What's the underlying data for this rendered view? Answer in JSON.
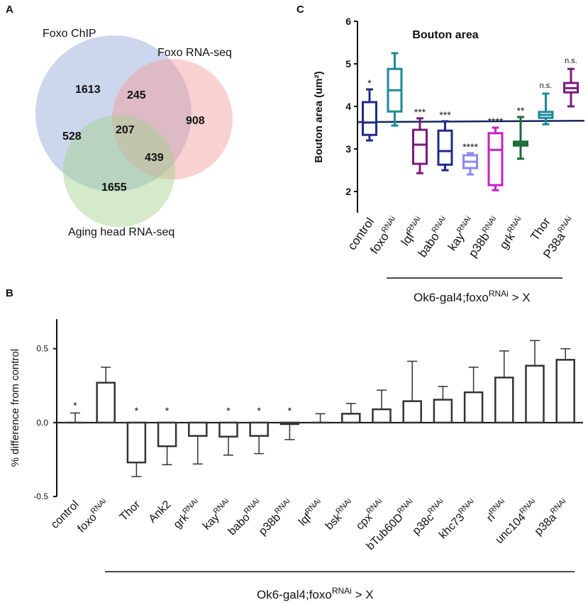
{
  "figure": {
    "panel_a": "A",
    "panel_b": "B",
    "panel_c": "C"
  },
  "venn": {
    "sets": [
      {
        "name": "Foxo ChIP",
        "color": "#8fa3d4"
      },
      {
        "name": "Foxo RNA-seq",
        "color": "#f59a9a"
      },
      {
        "name": "Aging head RNA-seq",
        "color": "#9fd08a"
      }
    ],
    "regions": {
      "chip_only": "1613",
      "chip_rnaseq": "245",
      "rnaseq_only": "908",
      "chip_aging": "528",
      "all_three": "207",
      "rnaseq_aging": "439",
      "aging_only": "1655"
    }
  },
  "chart_data": [
    {
      "id": "C",
      "type": "box",
      "title": "Bouton area",
      "ylabel": "Bouton area (um²)",
      "ylim": [
        1.5,
        6
      ],
      "yticks": [
        "2",
        "3",
        "4",
        "5",
        "6"
      ],
      "reference_line": 3.63,
      "group_label": "Ok6-gal4;foxo",
      "group_label_sup": "RNAi",
      "group_label_tail": " > X",
      "categories": [
        {
          "base": "control",
          "sup": "",
          "min": 3.2,
          "q1": 3.33,
          "median": 3.62,
          "q3": 4.1,
          "max": 4.4,
          "sig": "*",
          "color": "#1f2a8a"
        },
        {
          "base": "foxo",
          "sup": "RNAi",
          "min": 3.55,
          "q1": 3.88,
          "median": 4.38,
          "q3": 4.88,
          "max": 5.25,
          "sig": "",
          "color": "#1a8a9a"
        },
        {
          "base": "lqf",
          "sup": "RNAi",
          "min": 2.43,
          "q1": 2.65,
          "median": 3.1,
          "q3": 3.45,
          "max": 3.72,
          "sig": "***",
          "color": "#7a1a7a"
        },
        {
          "base": "babo",
          "sup": "RNAi",
          "min": 2.5,
          "q1": 2.63,
          "median": 2.95,
          "q3": 3.43,
          "max": 3.65,
          "sig": "***",
          "color": "#1f2a8a"
        },
        {
          "base": "kay",
          "sup": "RNAi",
          "min": 2.4,
          "q1": 2.55,
          "median": 2.7,
          "q3": 2.85,
          "max": 2.9,
          "sig": "****",
          "color": "#8a8aee"
        },
        {
          "base": "p38b",
          "sup": "RNAi",
          "min": 2.03,
          "q1": 2.15,
          "median": 2.98,
          "q3": 3.37,
          "max": 3.5,
          "sig": "****",
          "color": "#c820c8"
        },
        {
          "base": "grk",
          "sup": "RNAi",
          "min": 2.77,
          "q1": 3.08,
          "median": 3.12,
          "q3": 3.17,
          "max": 3.75,
          "sig": "**",
          "color": "#1a6a3a"
        },
        {
          "base": "Thor",
          "sup": "",
          "min": 3.58,
          "q1": 3.73,
          "median": 3.8,
          "q3": 3.87,
          "max": 4.3,
          "sig": "n.s.",
          "color": "#1a8a9a"
        },
        {
          "base": "P38a",
          "sup": "RNAi",
          "min": 4.0,
          "q1": 4.33,
          "median": 4.43,
          "q3": 4.55,
          "max": 4.88,
          "sig": "n.s.",
          "color": "#7a1a7a"
        }
      ]
    },
    {
      "id": "B",
      "type": "bar",
      "ylabel": "% difference from control",
      "ylim": [
        -0.5,
        0.7
      ],
      "yticks": [
        "0.5",
        "0.0",
        "-0.5"
      ],
      "group_label": "Ok6-gal4;foxo",
      "group_label_sup": "RNAi",
      "group_label_tail": " > X",
      "categories": [
        {
          "base": "control",
          "sup": "",
          "value": 0.0,
          "err": 0.065,
          "sig": "*"
        },
        {
          "base": "foxo",
          "sup": "RNAi",
          "value": 0.27,
          "err": 0.105,
          "sig": ""
        },
        {
          "base": "Thor",
          "sup": "",
          "value": -0.27,
          "err": 0.095,
          "sig": "*"
        },
        {
          "base": "Ank2",
          "sup": "",
          "value": -0.16,
          "err": 0.125,
          "sig": "*"
        },
        {
          "base": "grk",
          "sup": "RNAi",
          "value": -0.09,
          "err": 0.19,
          "sig": ""
        },
        {
          "base": "kay",
          "sup": "RNAi",
          "value": -0.095,
          "err": 0.125,
          "sig": "*"
        },
        {
          "base": "babo",
          "sup": "RNAi",
          "value": -0.09,
          "err": 0.12,
          "sig": "*"
        },
        {
          "base": "p38b",
          "sup": "RNAi",
          "value": -0.01,
          "err": 0.105,
          "sig": "*"
        },
        {
          "base": "lqf",
          "sup": "RNAi",
          "value": 0.0,
          "err": 0.06,
          "sig": ""
        },
        {
          "base": "bsk",
          "sup": "RNAi",
          "value": 0.06,
          "err": 0.07,
          "sig": ""
        },
        {
          "base": "cpx",
          "sup": "RNAi",
          "value": 0.09,
          "err": 0.13,
          "sig": ""
        },
        {
          "base": "bTub60D",
          "sup": "RNAi",
          "value": 0.145,
          "err": 0.27,
          "sig": ""
        },
        {
          "base": "p38c",
          "sup": "RNAi",
          "value": 0.155,
          "err": 0.09,
          "sig": ""
        },
        {
          "base": "khc73",
          "sup": "RNAi",
          "value": 0.205,
          "err": 0.17,
          "sig": ""
        },
        {
          "base": "rl",
          "sup": "RNAi",
          "value": 0.305,
          "err": 0.18,
          "sig": ""
        },
        {
          "base": "unc104",
          "sup": "RNAi",
          "value": 0.385,
          "err": 0.17,
          "sig": ""
        },
        {
          "base": "p38a",
          "sup": "RNAi",
          "value": 0.425,
          "err": 0.075,
          "sig": ""
        }
      ]
    }
  ]
}
